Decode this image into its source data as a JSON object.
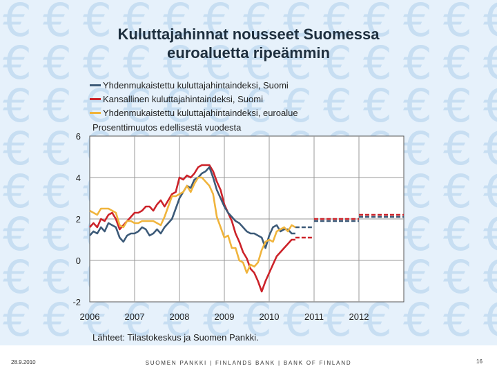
{
  "slide": {
    "title_line1": "Kuluttajahinnat nousseet Suomessa",
    "title_line2": "euroaluetta ripeämmin",
    "source": "Lähteet: Tilastokeskus ja Suomen Pankki.",
    "footer_date": "28.9.2010",
    "footer_bank": "SUOMEN PANKKI | FINLANDS BANK | BANK OF FINLAND",
    "footer_page": "16",
    "background_glyph": "€"
  },
  "chart_data": {
    "type": "line",
    "subtitle": "Prosenttimuutos edellisestä vuodesta",
    "xlim": [
      2006,
      2013
    ],
    "ylim": [
      -2,
      6
    ],
    "yticks": [
      6,
      4,
      2,
      0,
      -2
    ],
    "xticks": [
      2006,
      2007,
      2008,
      2009,
      2010,
      2011,
      2012
    ],
    "grid": true,
    "legend_position": "top-left above plot",
    "series": [
      {
        "name": "Yhdenmukaistettu kuluttajahintaindeksi, Suomi",
        "color": "#3c5a78",
        "x": [
          2006.0,
          2006.083,
          2006.167,
          2006.25,
          2006.333,
          2006.417,
          2006.5,
          2006.583,
          2006.667,
          2006.75,
          2006.833,
          2006.917,
          2007.0,
          2007.083,
          2007.167,
          2007.25,
          2007.333,
          2007.417,
          2007.5,
          2007.583,
          2007.667,
          2007.75,
          2007.833,
          2007.917,
          2008.0,
          2008.083,
          2008.167,
          2008.25,
          2008.333,
          2008.417,
          2008.5,
          2008.583,
          2008.667,
          2008.75,
          2008.833,
          2008.917,
          2009.0,
          2009.083,
          2009.167,
          2009.25,
          2009.333,
          2009.417,
          2009.5,
          2009.583,
          2009.667,
          2009.75,
          2009.833,
          2009.917,
          2010.0,
          2010.083,
          2010.167,
          2010.25,
          2010.333,
          2010.417,
          2010.5,
          2010.583
        ],
        "y": [
          1.2,
          1.4,
          1.3,
          1.6,
          1.4,
          1.8,
          1.7,
          1.6,
          1.1,
          0.9,
          1.2,
          1.3,
          1.3,
          1.4,
          1.6,
          1.5,
          1.2,
          1.3,
          1.5,
          1.3,
          1.6,
          1.8,
          2.0,
          2.5,
          3.0,
          3.3,
          3.6,
          3.5,
          3.9,
          4.0,
          4.2,
          4.3,
          4.5,
          4.0,
          3.4,
          3.0,
          2.6,
          2.3,
          2.1,
          1.9,
          1.8,
          1.6,
          1.4,
          1.3,
          1.3,
          1.2,
          1.1,
          0.6,
          1.2,
          1.6,
          1.7,
          1.4,
          1.5,
          1.5,
          1.3,
          1.3
        ]
      },
      {
        "name": "Kansallinen kuluttajahintaindeksi, Suomi",
        "color": "#cc2229",
        "x": [
          2006.0,
          2006.083,
          2006.167,
          2006.25,
          2006.333,
          2006.417,
          2006.5,
          2006.583,
          2006.667,
          2006.75,
          2006.833,
          2006.917,
          2007.0,
          2007.083,
          2007.167,
          2007.25,
          2007.333,
          2007.417,
          2007.5,
          2007.583,
          2007.667,
          2007.75,
          2007.833,
          2007.917,
          2008.0,
          2008.083,
          2008.167,
          2008.25,
          2008.333,
          2008.417,
          2008.5,
          2008.583,
          2008.667,
          2008.75,
          2008.833,
          2008.917,
          2009.0,
          2009.083,
          2009.167,
          2009.25,
          2009.333,
          2009.417,
          2009.5,
          2009.583,
          2009.667,
          2009.75,
          2009.833,
          2009.917,
          2010.0,
          2010.083,
          2010.167,
          2010.25,
          2010.333,
          2010.417,
          2010.5,
          2010.583
        ],
        "y": [
          1.6,
          1.8,
          1.6,
          2.0,
          1.9,
          2.2,
          2.3,
          2.0,
          1.5,
          1.7,
          1.9,
          2.1,
          2.3,
          2.3,
          2.4,
          2.6,
          2.6,
          2.4,
          2.7,
          2.9,
          2.6,
          2.9,
          3.2,
          3.3,
          4.0,
          3.9,
          4.1,
          4.0,
          4.2,
          4.5,
          4.6,
          4.6,
          4.6,
          4.3,
          3.8,
          3.4,
          2.7,
          2.3,
          1.9,
          1.3,
          0.9,
          0.4,
          0.1,
          -0.4,
          -0.6,
          -1.0,
          -1.5,
          -1.0,
          -0.6,
          -0.2,
          0.2,
          0.4,
          0.6,
          0.8,
          1.0,
          1.0
        ]
      },
      {
        "name": "Yhdenmukaistettu kuluttajahintaindeksi, euroalue",
        "color": "#f0b43c",
        "x": [
          2006.0,
          2006.083,
          2006.167,
          2006.25,
          2006.333,
          2006.417,
          2006.5,
          2006.583,
          2006.667,
          2006.75,
          2006.833,
          2006.917,
          2007.0,
          2007.083,
          2007.167,
          2007.25,
          2007.333,
          2007.417,
          2007.5,
          2007.583,
          2007.667,
          2007.75,
          2007.833,
          2007.917,
          2008.0,
          2008.083,
          2008.167,
          2008.25,
          2008.333,
          2008.417,
          2008.5,
          2008.583,
          2008.667,
          2008.75,
          2008.833,
          2008.917,
          2009.0,
          2009.083,
          2009.167,
          2009.25,
          2009.333,
          2009.417,
          2009.5,
          2009.583,
          2009.667,
          2009.75,
          2009.833,
          2009.917,
          2010.0,
          2010.083,
          2010.167,
          2010.25,
          2010.333,
          2010.417,
          2010.5,
          2010.583
        ],
        "y": [
          2.4,
          2.3,
          2.2,
          2.5,
          2.5,
          2.5,
          2.4,
          2.3,
          1.7,
          1.6,
          1.9,
          1.9,
          1.8,
          1.8,
          1.9,
          1.9,
          1.9,
          1.9,
          1.8,
          1.7,
          2.1,
          2.6,
          3.1,
          3.1,
          3.2,
          3.3,
          3.6,
          3.3,
          3.7,
          4.0,
          4.0,
          3.8,
          3.6,
          3.2,
          2.1,
          1.6,
          1.1,
          1.2,
          0.6,
          0.6,
          0.0,
          -0.1,
          -0.6,
          -0.2,
          -0.3,
          -0.1,
          0.5,
          0.9,
          1.0,
          0.9,
          1.4,
          1.5,
          1.6,
          1.4,
          1.7,
          1.6
        ]
      }
    ],
    "forecasts": [
      {
        "series": "Yhdenmukaistettu kuluttajahintaindeksi, Suomi",
        "x": [
          2010.583,
          2011.0
        ],
        "y": [
          1.6,
          1.6
        ]
      },
      {
        "series": "Kansallinen kuluttajahintaindeksi, Suomi",
        "x": [
          2010.583,
          2011.0
        ],
        "y": [
          1.1,
          1.1
        ]
      },
      {
        "series": "Yhdenmukaistettu kuluttajahintaindeksi, Suomi",
        "x": [
          2011.0,
          2012.0
        ],
        "y": [
          1.9,
          1.9
        ]
      },
      {
        "series": "Kansallinen kuluttajahintaindeksi, Suomi",
        "x": [
          2011.0,
          2012.0
        ],
        "y": [
          2.0,
          2.0
        ]
      },
      {
        "series": "Yhdenmukaistettu kuluttajahintaindeksi, Suomi",
        "x": [
          2012.0,
          2013.0
        ],
        "y": [
          2.1,
          2.1
        ]
      },
      {
        "series": "Kansallinen kuluttajahintaindeksi, Suomi",
        "x": [
          2012.0,
          2013.0
        ],
        "y": [
          2.2,
          2.2
        ]
      }
    ]
  }
}
